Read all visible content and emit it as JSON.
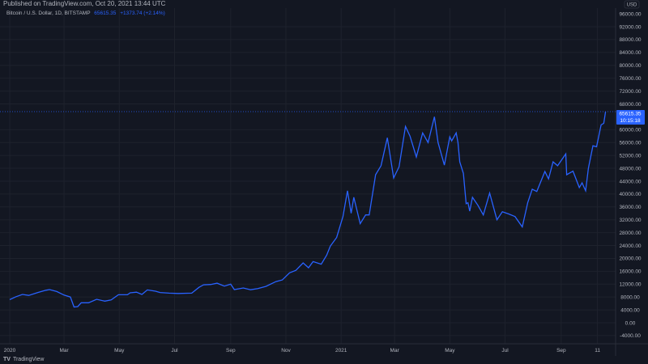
{
  "header": {
    "published": "Published on TradingView.com, Oct 20, 2021 13:44 UTC",
    "symbol": "Bitcoin / U.S. Dollar, 1D, BITSTAMP",
    "last": "65615.35",
    "change": "+1373.74 (+2.14%)"
  },
  "price_axis": {
    "currency": "USD",
    "last_label": "65615.35",
    "countdown": "10:15:18"
  },
  "footer": {
    "brand": "TradingView",
    "logo": "TV"
  },
  "colors": {
    "background": "#131722",
    "line": "#2962ff",
    "grid": "#1e222d",
    "text": "#b2b5be"
  },
  "chart_data": {
    "type": "line",
    "title": "Bitcoin / U.S. Dollar, 1D, BITSTAMP",
    "xlabel": "",
    "ylabel": "",
    "ylim": [
      -6000,
      98000
    ],
    "xlim": [
      "2019-12-28",
      "2021-11-02"
    ],
    "grid": true,
    "y_ticks": [
      -4000,
      0,
      4000,
      8000,
      12000,
      16000,
      20000,
      24000,
      28000,
      32000,
      36000,
      40000,
      44000,
      48000,
      52000,
      56000,
      60000,
      68000,
      72000,
      76000,
      80000,
      84000,
      88000,
      92000
    ],
    "y_tick_labels": [
      "-4000.00",
      "0.00",
      "4000.00",
      "8000.00",
      "12000.00",
      "16000.00",
      "20000.00",
      "24000.00",
      "28000.00",
      "32000.00",
      "36000.00",
      "40000.00",
      "44000.00",
      "48000.00",
      "52000.00",
      "56000.00",
      "60000.00",
      "68000.00",
      "72000.00",
      "76000.00",
      "80000.00",
      "84000.00",
      "88000.00",
      "92000.00"
    ],
    "x_ticks": [
      {
        "date": "2020-01-01",
        "label": "2020"
      },
      {
        "date": "2020-03-01",
        "label": "Mar"
      },
      {
        "date": "2020-05-01",
        "label": "May"
      },
      {
        "date": "2020-07-01",
        "label": "Jul"
      },
      {
        "date": "2020-09-01",
        "label": "Sep"
      },
      {
        "date": "2020-11-01",
        "label": "Nov"
      },
      {
        "date": "2021-01-01",
        "label": "2021"
      },
      {
        "date": "2021-03-01",
        "label": "Mar"
      },
      {
        "date": "2021-05-01",
        "label": "May"
      },
      {
        "date": "2021-07-01",
        "label": "Jul"
      },
      {
        "date": "2021-09-01",
        "label": "Sep"
      },
      {
        "date": "2021-10-11",
        "label": "11"
      }
    ],
    "series": [
      {
        "points": [
          [
            "2020-01-01",
            7200
          ],
          [
            "2020-01-08",
            8100
          ],
          [
            "2020-01-15",
            8800
          ],
          [
            "2020-01-22",
            8500
          ],
          [
            "2020-02-01",
            9400
          ],
          [
            "2020-02-10",
            10100
          ],
          [
            "2020-02-14",
            10300
          ],
          [
            "2020-02-22",
            9700
          ],
          [
            "2020-03-01",
            8600
          ],
          [
            "2020-03-08",
            8000
          ],
          [
            "2020-03-12",
            4900
          ],
          [
            "2020-03-16",
            5000
          ],
          [
            "2020-03-20",
            6200
          ],
          [
            "2020-03-28",
            6200
          ],
          [
            "2020-04-06",
            7300
          ],
          [
            "2020-04-15",
            6700
          ],
          [
            "2020-04-22",
            7100
          ],
          [
            "2020-04-30",
            8700
          ],
          [
            "2020-05-10",
            8700
          ],
          [
            "2020-05-13",
            9300
          ],
          [
            "2020-05-20",
            9500
          ],
          [
            "2020-05-26",
            8800
          ],
          [
            "2020-06-01",
            10200
          ],
          [
            "2020-06-10",
            9800
          ],
          [
            "2020-06-15",
            9400
          ],
          [
            "2020-06-25",
            9200
          ],
          [
            "2020-07-05",
            9100
          ],
          [
            "2020-07-20",
            9200
          ],
          [
            "2020-07-28",
            11000
          ],
          [
            "2020-08-02",
            11800
          ],
          [
            "2020-08-10",
            11900
          ],
          [
            "2020-08-17",
            12300
          ],
          [
            "2020-08-25",
            11400
          ],
          [
            "2020-09-01",
            12000
          ],
          [
            "2020-09-05",
            10300
          ],
          [
            "2020-09-15",
            10800
          ],
          [
            "2020-09-23",
            10250
          ],
          [
            "2020-10-01",
            10600
          ],
          [
            "2020-10-10",
            11300
          ],
          [
            "2020-10-21",
            12800
          ],
          [
            "2020-10-28",
            13300
          ],
          [
            "2020-11-05",
            15500
          ],
          [
            "2020-11-12",
            16300
          ],
          [
            "2020-11-20",
            18600
          ],
          [
            "2020-11-26",
            17100
          ],
          [
            "2020-12-01",
            19000
          ],
          [
            "2020-12-10",
            18200
          ],
          [
            "2020-12-16",
            21000
          ],
          [
            "2020-12-20",
            23800
          ],
          [
            "2020-12-27",
            26500
          ],
          [
            "2021-01-03",
            33000
          ],
          [
            "2021-01-08",
            41000
          ],
          [
            "2021-01-12",
            34000
          ],
          [
            "2021-01-15",
            39000
          ],
          [
            "2021-01-22",
            30800
          ],
          [
            "2021-01-28",
            33500
          ],
          [
            "2021-02-01",
            33500
          ],
          [
            "2021-02-08",
            46000
          ],
          [
            "2021-02-14",
            48800
          ],
          [
            "2021-02-21",
            57500
          ],
          [
            "2021-02-28",
            45000
          ],
          [
            "2021-03-06",
            48500
          ],
          [
            "2021-03-13",
            61000
          ],
          [
            "2021-03-18",
            58000
          ],
          [
            "2021-03-25",
            51500
          ],
          [
            "2021-04-01",
            59000
          ],
          [
            "2021-04-07",
            56000
          ],
          [
            "2021-04-14",
            64000
          ],
          [
            "2021-04-18",
            56000
          ],
          [
            "2021-04-25",
            49000
          ],
          [
            "2021-05-01",
            57800
          ],
          [
            "2021-05-03",
            56500
          ],
          [
            "2021-05-10",
            56000
          ],
          [
            "2021-05-08",
            59000
          ],
          [
            "2021-05-12",
            50000
          ],
          [
            "2021-05-16",
            46400
          ],
          [
            "2021-05-19",
            37000
          ],
          [
            "2021-05-21",
            37300
          ],
          [
            "2021-05-23",
            34700
          ],
          [
            "2021-05-26",
            39000
          ],
          [
            "2021-06-01",
            36500
          ],
          [
            "2021-06-07",
            33500
          ],
          [
            "2021-06-14",
            40300
          ],
          [
            "2021-06-22",
            32000
          ],
          [
            "2021-06-28",
            34500
          ],
          [
            "2021-07-05",
            33800
          ],
          [
            "2021-07-12",
            33000
          ],
          [
            "2021-07-20",
            29800
          ],
          [
            "2021-07-26",
            37300
          ],
          [
            "2021-07-31",
            41500
          ],
          [
            "2021-08-05",
            40800
          ],
          [
            "2021-08-14",
            47000
          ],
          [
            "2021-08-18",
            44700
          ],
          [
            "2021-08-23",
            50000
          ],
          [
            "2021-08-28",
            48800
          ],
          [
            "2021-09-06",
            52500
          ],
          [
            "2021-09-07",
            46000
          ],
          [
            "2021-09-14",
            47100
          ],
          [
            "2021-09-21",
            42000
          ],
          [
            "2021-09-24",
            43500
          ],
          [
            "2021-09-28",
            41000
          ],
          [
            "2021-10-01",
            48000
          ],
          [
            "2021-10-06",
            55000
          ],
          [
            "2021-10-10",
            54700
          ],
          [
            "2021-10-15",
            61500
          ],
          [
            "2021-10-18",
            62000
          ],
          [
            "2021-10-20",
            65615
          ]
        ]
      }
    ]
  }
}
